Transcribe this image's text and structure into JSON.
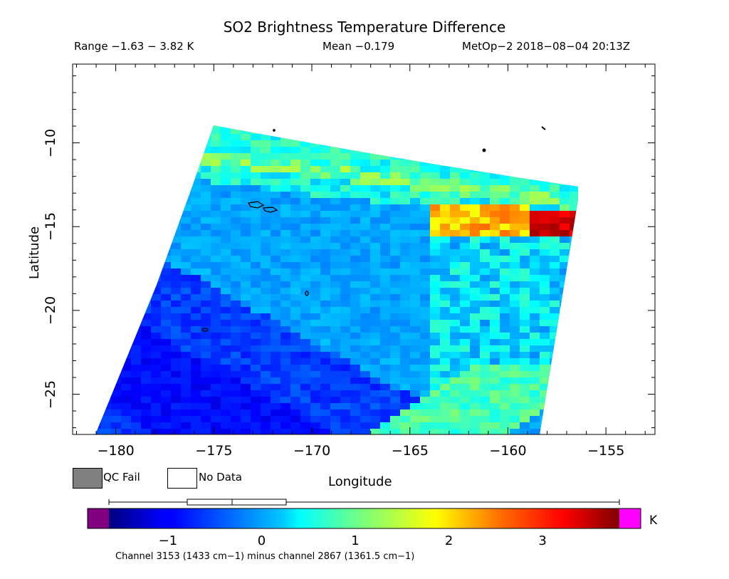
{
  "title": "SO2 Brightness Temperature Difference",
  "range_text": "Range −1.63 − 3.82 K",
  "mean_text": "Mean −0.179",
  "sat_text": "MetOp−2 2018−08−04 20:13Z",
  "axes": {
    "xlabel": "Longitude",
    "ylabel": "Latitude",
    "x_ticks": [
      "−180",
      "−175",
      "−170",
      "−165",
      "−160",
      "−155"
    ],
    "y_ticks": [
      "−10",
      "−15",
      "−20",
      "−25"
    ],
    "x_range": [
      -182.2,
      -152.5
    ],
    "y_range": [
      -27.4,
      -5.3
    ]
  },
  "legend": {
    "qc_fail_label": "QC Fail",
    "no_data_label": "No Data",
    "qc_fail_color": "#808080"
  },
  "colorbar": {
    "unit": "K",
    "ticks": [
      "−1",
      "0",
      "1",
      "2",
      "3"
    ],
    "range": [
      -1.63,
      3.82
    ],
    "low_color": "#800080",
    "high_color": "#ff00ff",
    "caption": "Channel 3153 (1433 cm−1) minus channel 2867 (1361.5 cm−1)"
  },
  "chart_data": {
    "type": "heatmap",
    "variable": "SO2 brightness temperature difference",
    "units": "K",
    "value_range": [
      -1.63,
      3.82
    ],
    "mean": -0.179,
    "swath_corners_lonlat": [
      [
        -175.5,
        -9.1
      ],
      [
        -156.0,
        -12.8
      ],
      [
        -158.3,
        -27.4
      ],
      [
        -181.2,
        -27.4
      ]
    ],
    "features": [
      {
        "name": "warm band north edge",
        "lon_range": [
          -175.5,
          -156
        ],
        "lat_range": [
          -10.5,
          -15.5
        ],
        "value_k": 1.5
      },
      {
        "name": "hot spot",
        "lon": -157,
        "lat": -14.8,
        "value_k": 3.5
      },
      {
        "name": "cold central region",
        "lon_range": [
          -174,
          -163
        ],
        "lat_range": [
          -15,
          -26
        ],
        "value_k": -1.0
      },
      {
        "name": "warm diagonal band",
        "lon_range": [
          -168,
          -159
        ],
        "lat_range": [
          -22,
          -27
        ],
        "value_k": 0.8
      }
    ]
  }
}
